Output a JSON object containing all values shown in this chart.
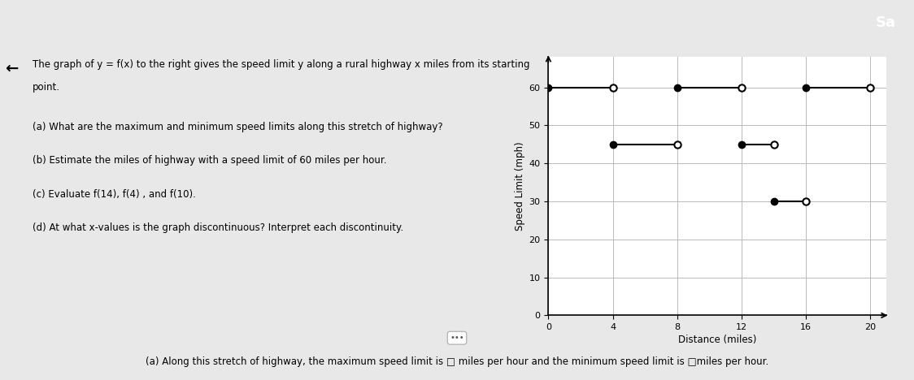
{
  "segments": [
    {
      "x_start": 0,
      "x_end": 4,
      "y": 60,
      "filled_start": true,
      "open_end": true
    },
    {
      "x_start": 4,
      "x_end": 8,
      "y": 45,
      "filled_start": true,
      "open_end": true
    },
    {
      "x_start": 8,
      "x_end": 12,
      "y": 60,
      "filled_start": true,
      "open_end": true
    },
    {
      "x_start": 12,
      "x_end": 14,
      "y": 45,
      "filled_start": true,
      "open_end": true
    },
    {
      "x_start": 14,
      "x_end": 16,
      "y": 30,
      "filled_start": true,
      "open_end": true
    },
    {
      "x_start": 16,
      "x_end": 20,
      "y": 60,
      "filled_start": true,
      "open_end": true
    }
  ],
  "xlabel": "Distance (miles)",
  "ylabel": "Speed Limit (mph)",
  "xlim": [
    0,
    21
  ],
  "ylim": [
    0,
    68
  ],
  "xticks": [
    0,
    4,
    8,
    12,
    16,
    20
  ],
  "yticks": [
    0,
    10,
    20,
    30,
    40,
    50,
    60
  ],
  "filled_dot_color": "#000000",
  "open_dot_color": "#000000",
  "line_color": "#000000",
  "grid_color": "#b0b0b0",
  "background_color": "#f0f0f0",
  "page_bg": "#f0f0f0",
  "fig_width": 11.24,
  "fig_height": 4.68,
  "dot_size": 6,
  "line_width": 1.5,
  "top_text_lines": [
    "The graph of y = f(x) to the right gives the speed limit y along a rural highway x miles from its starting",
    "point."
  ],
  "question_lines": [
    "(a) What are the maximum and minimum speed limits along this stretch of highway?",
    "(b) Estimate the miles of highway with a speed limit of 60 miles per hour.",
    "(c) Evaluate f(14), f(4) , and f(10).",
    "(d) At what x-values is the graph discontinuous? Interpret each discontinuity."
  ],
  "bottom_text": "(a) Along this stretch of highway, the maximum speed limit is □ miles per hour and the minimum speed limit is □miles per hour.",
  "header_label": "Sa",
  "left_arrow": "←",
  "top_bar_color": "#2196a8",
  "left_bar_color": "#c8b84a"
}
